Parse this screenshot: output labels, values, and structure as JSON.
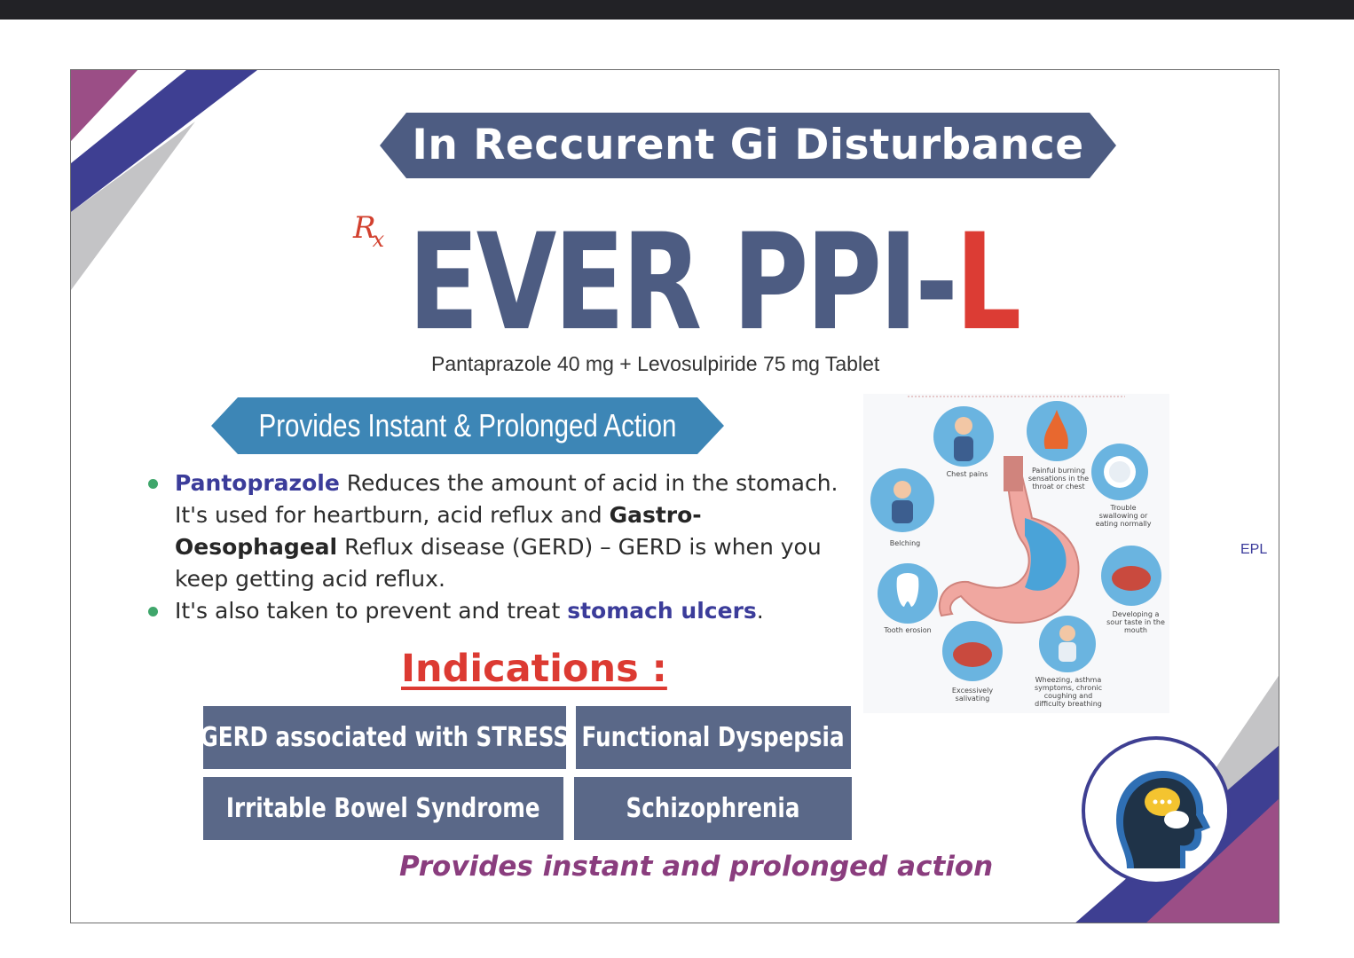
{
  "banner": {
    "title": "In Reccurent Gi Disturbance"
  },
  "rx": {
    "r": "R",
    "x": "x"
  },
  "brand": {
    "name_main": "EVER PPI-",
    "name_accent": "L",
    "accent_color": "#dc3c34",
    "primary_color": "#4d5c82"
  },
  "composition": "Pantaprazole 40 mg + Levosulpiride 75 mg Tablet",
  "action_banner": "Provides Instant & Prolonged Action",
  "bullets": {
    "b1_lead": "Pantoprazole",
    "b1_text1": " Reduces the amount of acid in the stomach. It's used for heartburn, acid reflux and ",
    "b1_bold": "Gastro-Oesophageal",
    "b1_text2": " Reflux disease (GERD) – GERD is when you keep getting acid reflux.",
    "b2_text": "It's also taken to prevent and treat ",
    "b2_bold": "stomach ulcers",
    "b2_end": "."
  },
  "indications": {
    "title": "Indications :",
    "items": [
      "GERD associated with STRESS",
      "Functional Dyspepsia",
      "Irritable Bowel Syndrome",
      "Schizophrenia"
    ]
  },
  "tagline": "Provides instant and prolonged action",
  "epl": "EPL",
  "illustration": {
    "labels": {
      "chest": "Chest pains",
      "burning": "Painful burning sensations in the throat or chest",
      "swallow": "Trouble swallowing or eating normally",
      "belching": "Belching",
      "sour": "Developing a sour taste in the mouth",
      "tooth": "Tooth erosion",
      "wheezing": "Wheezing, asthma symptoms, chronic coughing and difficulty breathing",
      "saliva": "Excessively salivating"
    }
  },
  "icons": {
    "bubble": "speech-bubble-icon"
  }
}
